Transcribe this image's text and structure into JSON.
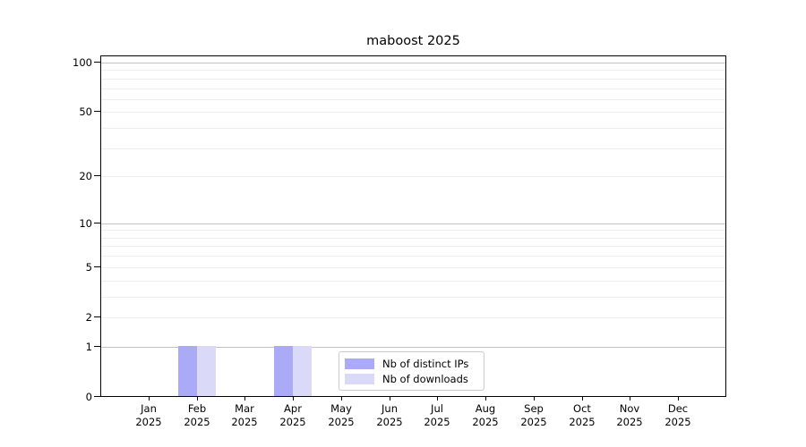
{
  "chart_data": {
    "type": "bar",
    "title": "maboost 2025",
    "categories": [
      "Jan 2025",
      "Feb 2025",
      "Mar 2025",
      "Apr 2025",
      "May 2025",
      "Jun 2025",
      "Jul 2025",
      "Aug 2025",
      "Sep 2025",
      "Oct 2025",
      "Nov 2025",
      "Dec 2025"
    ],
    "series": [
      {
        "name": "Nb of distinct IPs",
        "color": "#aaaaf6",
        "values": [
          0,
          1,
          0,
          1,
          0,
          0,
          0,
          0,
          0,
          0,
          0,
          0
        ]
      },
      {
        "name": "Nb of downloads",
        "color": "#dadaf8",
        "values": [
          0,
          1,
          0,
          1,
          0,
          0,
          0,
          0,
          0,
          0,
          0,
          0
        ]
      }
    ],
    "xlabel": "",
    "ylabel": "",
    "yscale": "log1p",
    "ylim": [
      0,
      100
    ],
    "yticks": [
      0,
      1,
      2,
      5,
      10,
      20,
      50,
      100
    ],
    "ygrid_major": [
      1,
      10,
      100
    ],
    "ygrid_minor": [
      2,
      3,
      4,
      5,
      6,
      7,
      8,
      9,
      20,
      30,
      40,
      50,
      60,
      70,
      80,
      90
    ],
    "grid": "on",
    "legend_position": "bottom-center"
  },
  "colors": {
    "bar_distinct_ips": "#aaaaf6",
    "bar_downloads": "#dadaf8",
    "major_grid": "#c2c2c2",
    "minor_grid": "#ededed",
    "axis": "#000000",
    "legend_border": "#cccccc",
    "background": "#ffffff"
  }
}
